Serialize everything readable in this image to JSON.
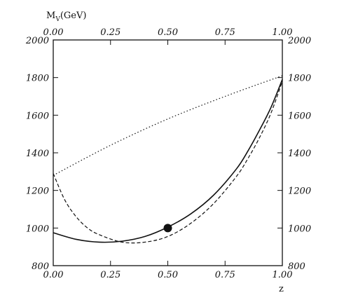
{
  "chart_data": {
    "type": "line",
    "title": "",
    "ylabel": "M",
    "ylabel_sub": "V",
    "ylabel_unit": "(GeV)",
    "xlabel": "z",
    "xlim": [
      0,
      1
    ],
    "ylim": [
      800,
      2000
    ],
    "x_ticks": [
      "0.00",
      "0.25",
      "0.50",
      "0.75",
      "1.00"
    ],
    "y_ticks": [
      "800",
      "1000",
      "1200",
      "1400",
      "1600",
      "1800",
      "2000"
    ],
    "grid": false,
    "series": [
      {
        "style": "solid",
        "x": [
          0.0,
          0.1,
          0.2,
          0.3,
          0.4,
          0.5,
          0.6,
          0.7,
          0.8,
          0.85,
          0.9,
          0.95,
          1.0
        ],
        "y": [
          975,
          940,
          925,
          930,
          955,
          1005,
          1075,
          1175,
          1315,
          1410,
          1520,
          1640,
          1790
        ]
      },
      {
        "style": "dashed",
        "x": [
          0.0,
          0.05,
          0.1,
          0.15,
          0.2,
          0.3,
          0.4,
          0.5,
          0.6,
          0.7,
          0.8,
          0.85,
          0.9,
          0.95,
          1.0
        ],
        "y": [
          1290,
          1150,
          1060,
          1000,
          965,
          925,
          925,
          955,
          1025,
          1130,
          1275,
          1370,
          1480,
          1610,
          1780
        ]
      },
      {
        "style": "dotted",
        "x": [
          0.0,
          0.25,
          0.5,
          0.75,
          1.0
        ],
        "y": [
          1280,
          1440,
          1580,
          1700,
          1810
        ]
      }
    ],
    "points": [
      {
        "x": 0.5,
        "y": 1000,
        "marker": "filled-circle"
      }
    ],
    "colors": {
      "line": "#111111",
      "frame": "#111111"
    }
  }
}
